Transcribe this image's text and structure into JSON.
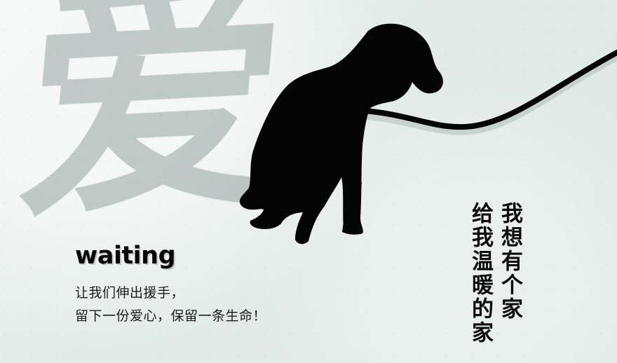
{
  "poster": {
    "background_character": "爱",
    "headline": "waiting",
    "message_lines": [
      "让我们伸出援手，",
      "留下一份爱心，保留一条生命！"
    ],
    "vertical_lines": [
      "我想有个家",
      "给我温暖的家"
    ]
  },
  "icons": {
    "dog": "dog-silhouette-icon",
    "leash": "leash-icon"
  },
  "colors": {
    "background": "#e3ebe8",
    "ink": "#050505",
    "watermark": "#5f726d"
  }
}
